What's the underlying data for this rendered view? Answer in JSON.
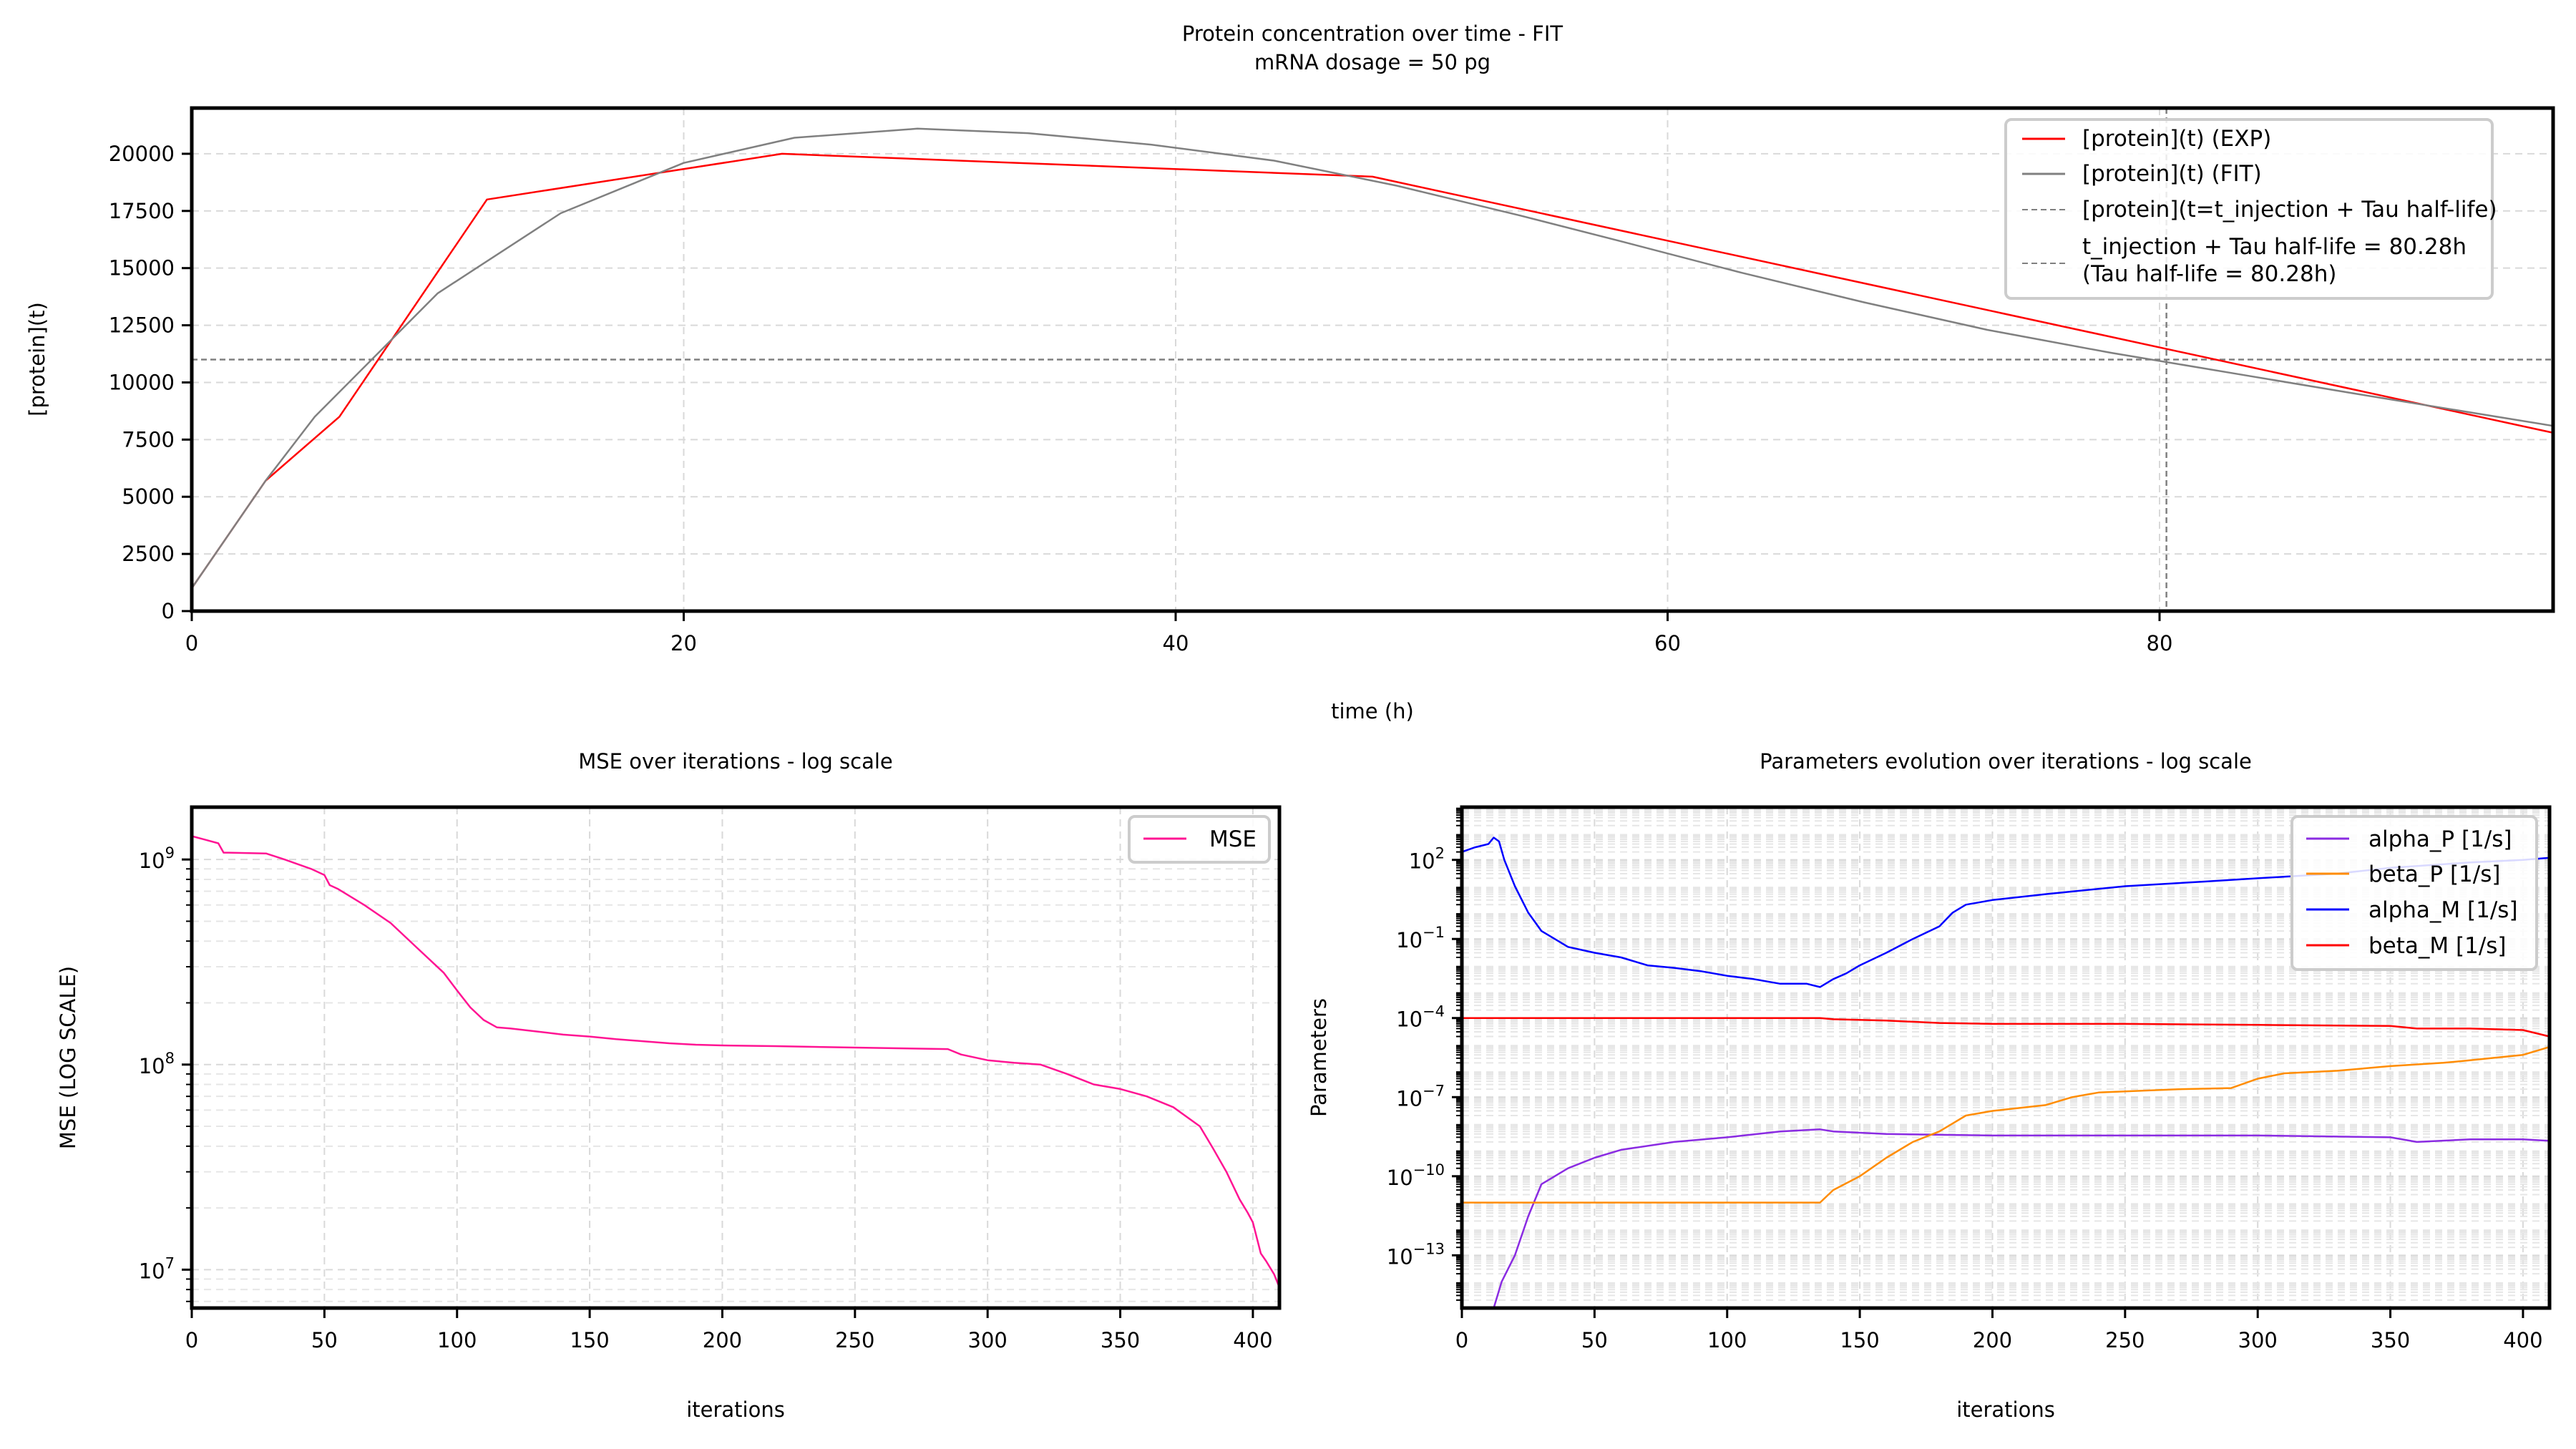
{
  "figure": {
    "title": "Protein concentration over time - FIT",
    "subtitle": "mRNA dosage = 50 pg"
  },
  "colors": {
    "exp": "#ff0000",
    "fit": "#808080",
    "ref": "#808080",
    "mse": "#ff1493",
    "alpha_P": "#8a2be2",
    "beta_P": "#ff8c00",
    "alpha_M": "#0000ff",
    "beta_M": "#ff0000",
    "grid": "#d9d9d9"
  },
  "chart_data": [
    {
      "id": "protein",
      "type": "line",
      "title": "",
      "xlabel": "time (h)",
      "ylabel": "[protein](t)",
      "xlim": [
        0,
        96
      ],
      "ylim": [
        0,
        22000
      ],
      "xticks": [
        0,
        20,
        40,
        60,
        80
      ],
      "yticks": [
        0,
        2500,
        5000,
        7500,
        10000,
        12500,
        15000,
        17500,
        20000
      ],
      "grid": true,
      "legend": "top-right",
      "series": [
        {
          "name": "[protein](t) (EXP)",
          "color_key": "exp",
          "x": [
            0,
            3,
            6,
            12,
            24,
            48,
            96
          ],
          "y": [
            1000,
            5700,
            8500,
            18000,
            20000,
            19000,
            7800
          ]
        },
        {
          "name": "[protein](t) (FIT)",
          "color_key": "fit",
          "x": [
            0,
            3,
            5,
            10,
            15,
            20,
            24.5,
            29.5,
            34,
            39,
            44,
            49,
            54,
            58,
            63,
            68,
            73,
            78,
            83,
            88,
            96
          ],
          "y": [
            1000,
            5700,
            8500,
            13900,
            17400,
            19600,
            20700,
            21100,
            20900,
            20400,
            19700,
            18600,
            17300,
            16200,
            14800,
            13500,
            12300,
            11300,
            10400,
            9500,
            8100
          ]
        }
      ],
      "reference_lines": [
        {
          "orientation": "horizontal",
          "value": 11000,
          "legend": "[protein](t=t_injection + Tau half-life)"
        },
        {
          "orientation": "vertical",
          "value": 80.28,
          "legend_line1": "t_injection + Tau half-life = 80.28h",
          "legend_line2": "(Tau half-life = 80.28h)"
        }
      ]
    },
    {
      "id": "mse",
      "type": "line",
      "title": "MSE over iterations - log scale",
      "xlabel": "iterations",
      "ylabel": "MSE (LOG SCALE)",
      "yscale": "log",
      "xlim": [
        0,
        410
      ],
      "ylim": [
        6500000.0,
        1800000000.0
      ],
      "xticks": [
        0,
        50,
        100,
        150,
        200,
        250,
        300,
        350,
        400
      ],
      "yticks": [
        {
          "mant": "10",
          "exp": "7",
          "value": 10000000.0
        },
        {
          "mant": "10",
          "exp": "8",
          "value": 100000000.0
        },
        {
          "mant": "10",
          "exp": "9",
          "value": 1000000000.0
        }
      ],
      "grid": true,
      "legend": "top-right",
      "series": [
        {
          "name": "MSE",
          "color_key": "mse",
          "x": [
            0,
            5,
            10,
            12,
            14,
            28,
            35,
            45,
            50,
            52,
            55,
            65,
            75,
            85,
            95,
            100,
            105,
            110,
            115,
            120,
            130,
            140,
            150,
            160,
            170,
            180,
            190,
            200,
            220,
            250,
            285,
            290,
            300,
            310,
            320,
            330,
            340,
            350,
            360,
            370,
            380,
            385,
            390,
            395,
            398,
            400,
            403,
            405,
            408,
            410
          ],
          "y": [
            1300000000.0,
            1250000000.0,
            1200000000.0,
            1080000000.0,
            1080000000.0,
            1070000000.0,
            1000000000.0,
            900000000.0,
            840000000.0,
            750000000.0,
            720000000.0,
            600000000.0,
            490000000.0,
            370000000.0,
            280000000.0,
            230000000.0,
            190000000.0,
            165000000.0,
            152000000.0,
            150000000.0,
            145000000.0,
            140000000.0,
            137000000.0,
            133000000.0,
            130000000.0,
            127000000.0,
            125000000.0,
            124000000.0,
            123000000.0,
            121000000.0,
            119000000.0,
            112000000.0,
            105000000.0,
            102000000.0,
            100000000.0,
            90000000.0,
            80000000.0,
            76000000.0,
            70000000.0,
            62000000.0,
            50000000.0,
            39000000.0,
            30000000.0,
            22000000.0,
            19000000.0,
            17000000.0,
            12000000.0,
            11000000.0,
            9500000.0,
            8200000.0
          ]
        }
      ]
    },
    {
      "id": "params",
      "type": "line",
      "title": "Parameters evolution over iterations - log scale",
      "xlabel": "iterations",
      "ylabel": "Parameters",
      "yscale": "log",
      "xlim": [
        0,
        410
      ],
      "ylim": [
        1e-15,
        10000.0
      ],
      "xticks": [
        0,
        50,
        100,
        150,
        200,
        250,
        300,
        350,
        400
      ],
      "yticks": [
        {
          "mant": "10",
          "exp": "−13",
          "value": 1e-13
        },
        {
          "mant": "10",
          "exp": "−10",
          "value": 1e-10
        },
        {
          "mant": "10",
          "exp": "−7",
          "value": 1e-07
        },
        {
          "mant": "10",
          "exp": "−4",
          "value": 0.0001
        },
        {
          "mant": "10",
          "exp": "−1",
          "value": 0.1
        },
        {
          "mant": "10",
          "exp": "2",
          "value": 100.0
        }
      ],
      "grid": true,
      "legend": "top-right",
      "series": [
        {
          "name": "alpha_P [1/s]",
          "color_key": "alpha_P",
          "x": [
            0,
            12,
            15,
            20,
            25,
            30,
            35,
            40,
            50,
            60,
            80,
            100,
            120,
            135,
            140,
            160,
            200,
            250,
            300,
            350,
            360,
            380,
            400,
            410
          ],
          "y": [
            1e-15,
            1e-15,
            1e-14,
            1e-13,
            3e-12,
            5e-11,
            1e-10,
            2e-10,
            5e-10,
            1e-09,
            2e-09,
            3e-09,
            5e-09,
            6e-09,
            5e-09,
            4e-09,
            3.5e-09,
            3.5e-09,
            3.5e-09,
            3e-09,
            2e-09,
            2.5e-09,
            2.5e-09,
            2.2e-09
          ]
        },
        {
          "name": "beta_P [1/s]",
          "color_key": "beta_P",
          "x": [
            0,
            135,
            140,
            150,
            160,
            170,
            180,
            185,
            190,
            200,
            220,
            230,
            240,
            270,
            290,
            300,
            310,
            330,
            350,
            370,
            380,
            400,
            410
          ],
          "y": [
            1e-11,
            1e-11,
            3e-11,
            1e-10,
            5e-10,
            2e-09,
            5e-09,
            1e-08,
            2e-08,
            3e-08,
            5e-08,
            1e-07,
            1.5e-07,
            2e-07,
            2.2e-07,
            5e-07,
            8e-07,
            1e-06,
            1.5e-06,
            2e-06,
            2.5e-06,
            4e-06,
            8e-06
          ]
        },
        {
          "name": "alpha_M [1/s]",
          "color_key": "alpha_M",
          "x": [
            0,
            5,
            10,
            12,
            14,
            16,
            20,
            25,
            30,
            35,
            40,
            50,
            60,
            70,
            80,
            90,
            100,
            110,
            120,
            130,
            135,
            140,
            145,
            150,
            160,
            170,
            180,
            185,
            190,
            200,
            220,
            250,
            280,
            300,
            330,
            350,
            380,
            400,
            410
          ],
          "y": [
            200,
            300,
            400,
            700,
            500,
            100,
            10,
            1,
            0.2,
            0.1,
            0.05,
            0.03,
            0.02,
            0.01,
            0.008,
            0.006,
            0.004,
            0.003,
            0.002,
            0.002,
            0.0015,
            0.003,
            0.005,
            0.01,
            0.03,
            0.1,
            0.3,
            1,
            2,
            3,
            5,
            10,
            15,
            20,
            30,
            50,
            80,
            100,
            120
          ]
        },
        {
          "name": "beta_M [1/s]",
          "color_key": "beta_M",
          "x": [
            0,
            50,
            100,
            135,
            140,
            160,
            180,
            200,
            250,
            300,
            350,
            360,
            380,
            400,
            410
          ],
          "y": [
            0.0001,
            0.0001,
            0.0001,
            0.0001,
            9e-05,
            8e-05,
            6.5e-05,
            6e-05,
            6e-05,
            5.5e-05,
            5e-05,
            4e-05,
            4e-05,
            3.5e-05,
            2e-05
          ]
        }
      ]
    }
  ]
}
